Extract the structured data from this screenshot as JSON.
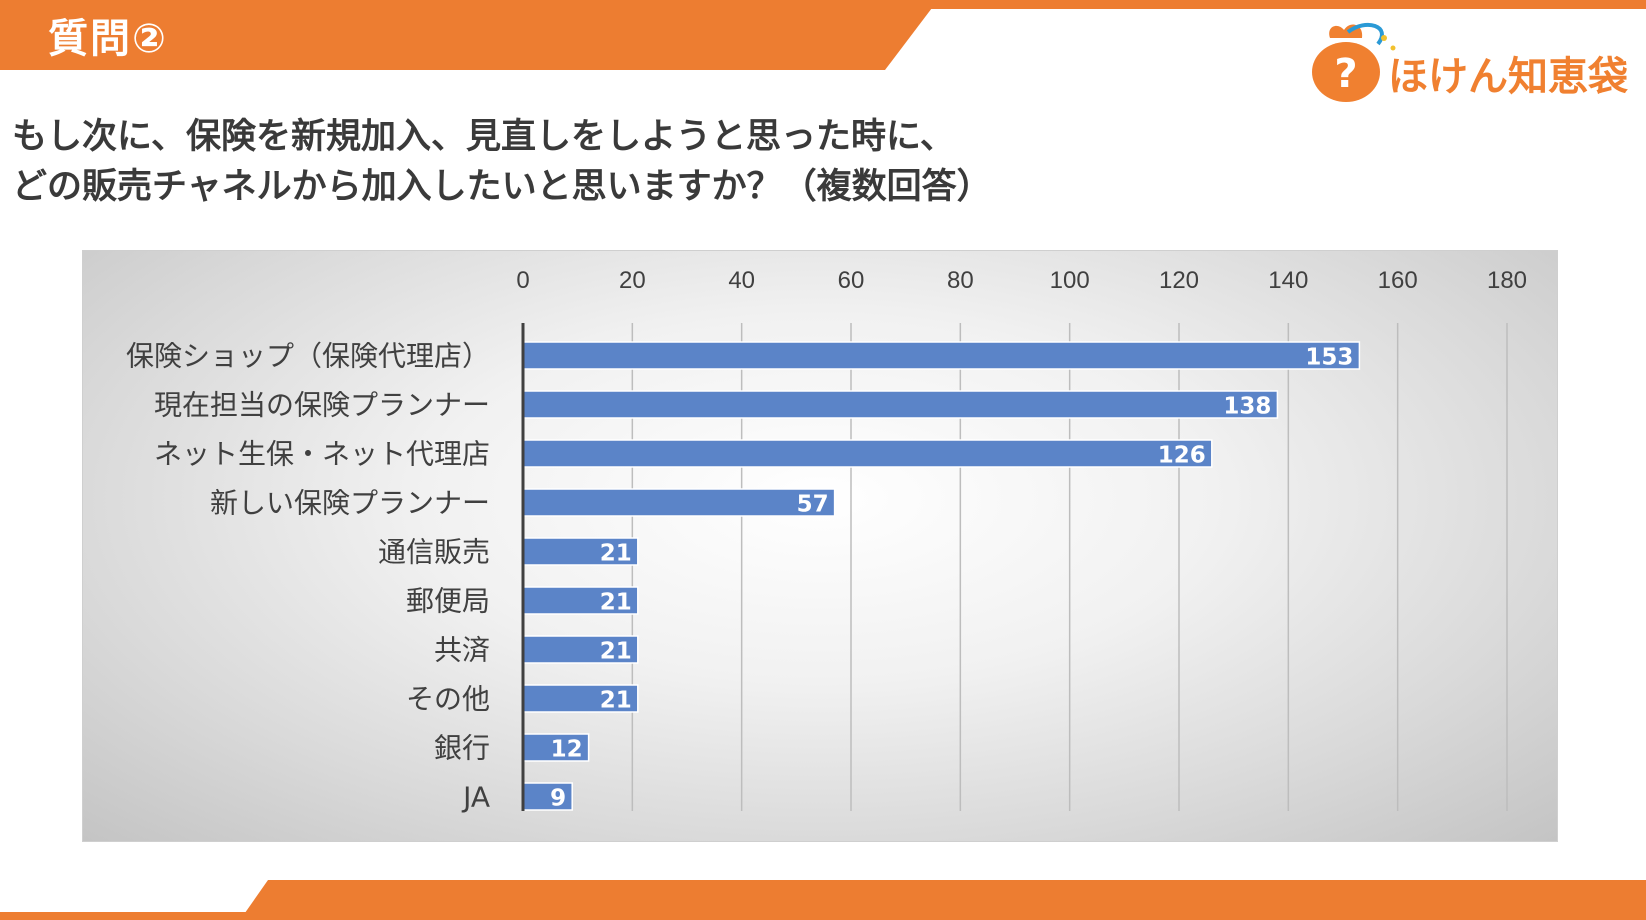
{
  "header": {
    "label": "質問②"
  },
  "logo": {
    "text": "ほけん知恵袋",
    "icon": "question-bag-icon",
    "brand_color": "#f08030"
  },
  "question": {
    "line1": "もし次に、保険を新規加入、見直しをしようと思った時に、",
    "line2": "どの販売チャネルから加入したいと思いますか？（複数回答）"
  },
  "colors": {
    "accent": "#ed7d31",
    "bar": "#5b84c8",
    "bar_edge": "#ffffff",
    "label_text": "#ffffff"
  },
  "chart_data": {
    "type": "bar",
    "orientation": "horizontal",
    "categories": [
      "保険ショップ（保険代理店）",
      "現在担当の保険プランナー",
      "ネット生保・ネット代理店",
      "新しい保険プランナー",
      "通信販売",
      "郵便局",
      "共済",
      "その他",
      "銀行",
      "JA"
    ],
    "values": [
      153,
      138,
      126,
      57,
      21,
      21,
      21,
      21,
      12,
      9
    ],
    "xlim": [
      0,
      180
    ],
    "ticks": [
      "0",
      "20",
      "40",
      "60",
      "80",
      "100",
      "120",
      "140",
      "160",
      "180"
    ],
    "tick_values": [
      0,
      20,
      40,
      60,
      80,
      100,
      120,
      140,
      160,
      180
    ],
    "value_labels": [
      "153",
      "138",
      "126",
      "57",
      "21",
      "21",
      "21",
      "21",
      "12",
      "9"
    ],
    "x_axis_position": "top",
    "grid": true,
    "legend": "none",
    "title": "",
    "xlabel": "",
    "ylabel": ""
  }
}
